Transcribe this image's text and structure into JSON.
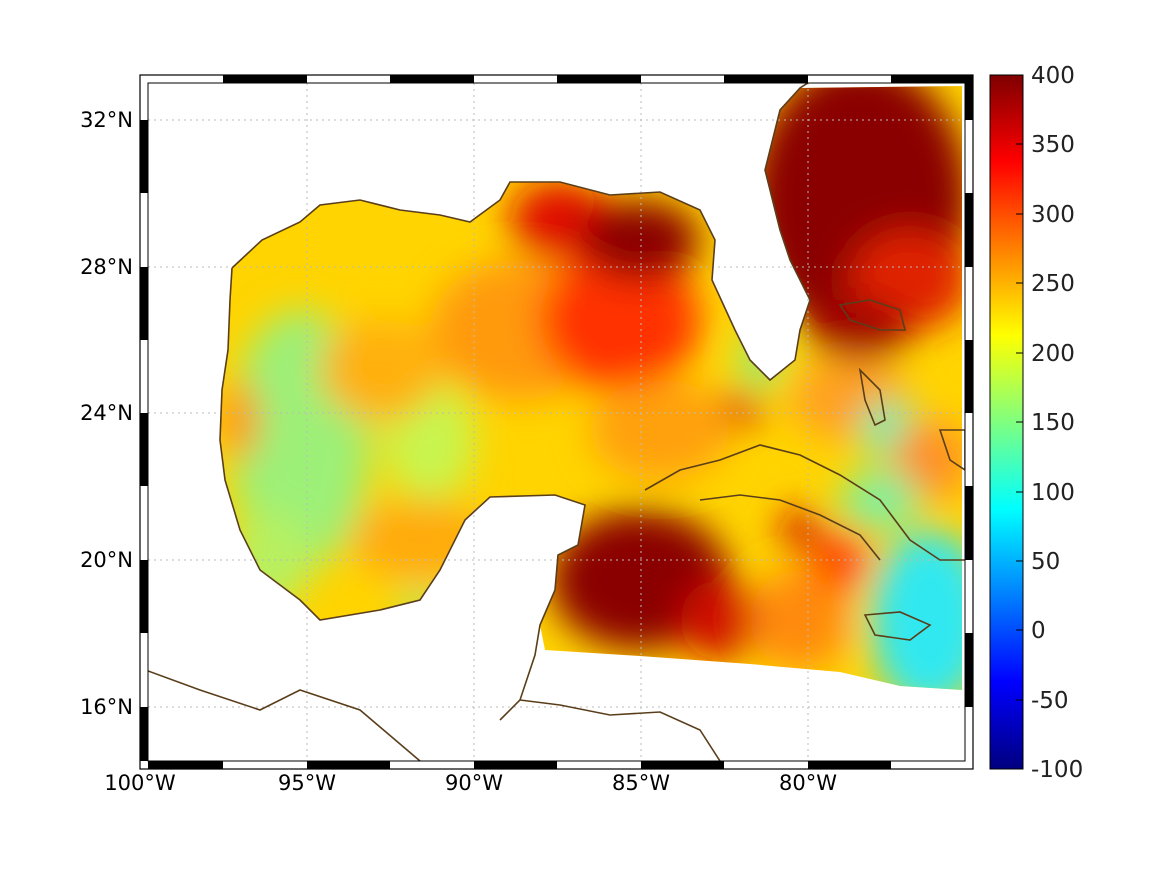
{
  "map": {
    "x_axis": {
      "ticks": [
        {
          "value": -100,
          "label": "100°W"
        },
        {
          "value": -95,
          "label": "95°W"
        },
        {
          "value": -90,
          "label": "90°W"
        },
        {
          "value": -85,
          "label": "85°W"
        },
        {
          "value": -80,
          "label": "80°W"
        }
      ],
      "range": [
        -100,
        -75.1
      ]
    },
    "y_axis": {
      "ticks": [
        {
          "value": 16,
          "label": "16°N"
        },
        {
          "value": 20,
          "label": "20°N"
        },
        {
          "value": 24,
          "label": "24°N"
        },
        {
          "value": 28,
          "label": "28°N"
        },
        {
          "value": 32,
          "label": "32°N"
        }
      ],
      "range": [
        14.1,
        33
      ]
    },
    "grid": "dotted",
    "colorbar": {
      "ticks": [
        {
          "value": -100,
          "label": "-100"
        },
        {
          "value": -50,
          "label": "-50"
        },
        {
          "value": 0,
          "label": "0"
        },
        {
          "value": 50,
          "label": "50"
        },
        {
          "value": 100,
          "label": "100"
        },
        {
          "value": 150,
          "label": "150"
        },
        {
          "value": 200,
          "label": "200"
        },
        {
          "value": 250,
          "label": "250"
        },
        {
          "value": 300,
          "label": "300"
        },
        {
          "value": 350,
          "label": "350"
        },
        {
          "value": 400,
          "label": "400"
        }
      ],
      "range": [
        -100,
        400
      ],
      "colormap": "jet"
    },
    "colors": {
      "coastline": "#5a3e1b",
      "land": "#ffffff",
      "frame": "#000000"
    }
  }
}
